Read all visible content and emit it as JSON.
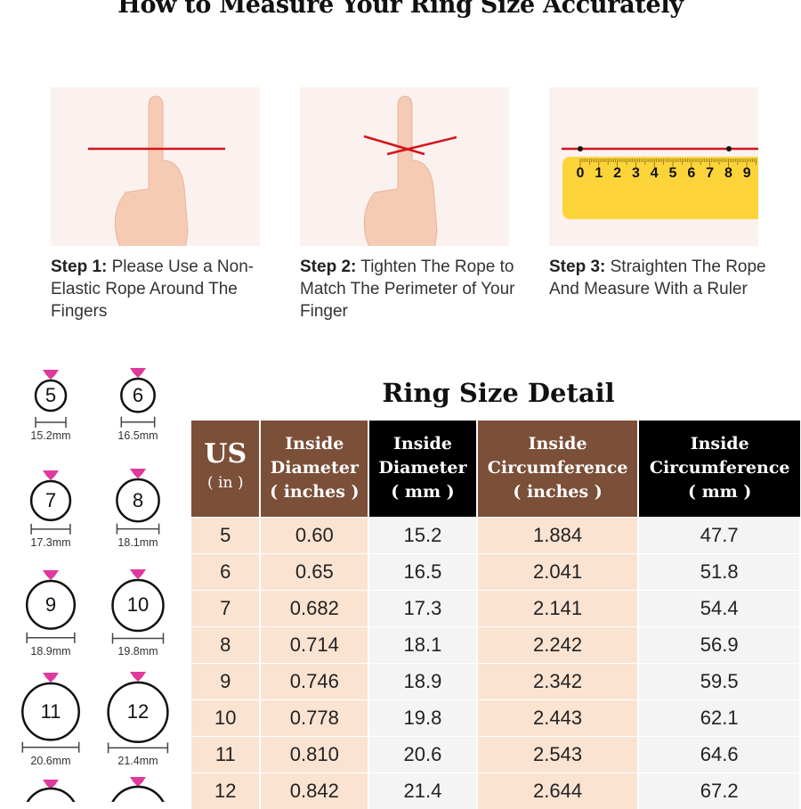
{
  "title": "How to Measure Your Ring Size Accurately",
  "steps": [
    {
      "label": "Step 1:",
      "text": " Please Use a Non-Elastic Rope Around The Fingers"
    },
    {
      "label": "Step 2:",
      "text": " Tighten The Rope to Match The Perimeter of Your Finger"
    },
    {
      "label": "Step 3:",
      "text": " Straighten The Rope And Measure With a Ruler"
    }
  ],
  "ruler_numbers": [
    "0",
    "1",
    "2",
    "3",
    "4",
    "5",
    "6",
    "7",
    "8",
    "9"
  ],
  "rings": [
    {
      "size": "5",
      "mm": "15.2mm"
    },
    {
      "size": "6",
      "mm": "16.5mm"
    },
    {
      "size": "7",
      "mm": "17.3mm"
    },
    {
      "size": "8",
      "mm": "18.1mm"
    },
    {
      "size": "9",
      "mm": "18.9mm"
    },
    {
      "size": "10",
      "mm": "19.8mm"
    },
    {
      "size": "11",
      "mm": "20.6mm"
    },
    {
      "size": "12",
      "mm": "21.4mm"
    }
  ],
  "colors": {
    "brown": "#7b4f38",
    "black": "#000000",
    "peach": "#fbe3d2",
    "gem": "#e0399e",
    "rope": "#d4141c",
    "ruler": "#fcd43a"
  },
  "table": {
    "title": "Ring Size Detail",
    "headers": [
      {
        "main": "US",
        "unit": "( in )"
      },
      {
        "main": "Inside Diameter",
        "unit": "( inches )"
      },
      {
        "main": "Inside Diameter",
        "unit": "( mm )"
      },
      {
        "main": "Inside Circumference",
        "unit": "( inches )"
      },
      {
        "main": "Inside Circumference",
        "unit": "( mm )"
      }
    ],
    "rows": [
      [
        "5",
        "0.60",
        "15.2",
        "1.884",
        "47.7"
      ],
      [
        "6",
        "0.65",
        "16.5",
        "2.041",
        "51.8"
      ],
      [
        "7",
        "0.682",
        "17.3",
        "2.141",
        "54.4"
      ],
      [
        "8",
        "0.714",
        "18.1",
        "2.242",
        "56.9"
      ],
      [
        "9",
        "0.746",
        "18.9",
        "2.342",
        "59.5"
      ],
      [
        "10",
        "0.778",
        "19.8",
        "2.443",
        "62.1"
      ],
      [
        "11",
        "0.810",
        "20.6",
        "2.543",
        "64.6"
      ],
      [
        "12",
        "0.842",
        "21.4",
        "2.644",
        "67.2"
      ]
    ]
  }
}
